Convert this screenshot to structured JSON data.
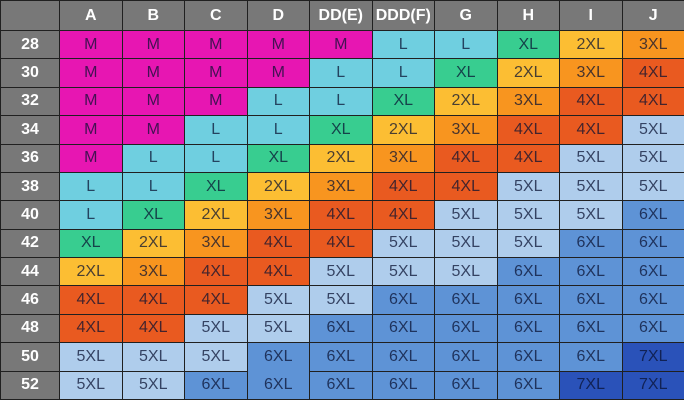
{
  "chart_data": {
    "type": "table",
    "corner_label": "",
    "column_headers": [
      "A",
      "B",
      "C",
      "D",
      "DD(E)",
      "DDD(F)",
      "G",
      "H",
      "I",
      "J"
    ],
    "row_headers": [
      "28",
      "30",
      "32",
      "34",
      "36",
      "38",
      "40",
      "42",
      "44",
      "46",
      "48",
      "50",
      "52"
    ],
    "rows": [
      {
        "band": "28",
        "sizes": [
          "M",
          "M",
          "M",
          "M",
          "M",
          "L",
          "L",
          "XL",
          "2XL",
          "3XL"
        ]
      },
      {
        "band": "30",
        "sizes": [
          "M",
          "M",
          "M",
          "M",
          "L",
          "L",
          "XL",
          "2XL",
          "3XL",
          "4XL"
        ]
      },
      {
        "band": "32",
        "sizes": [
          "M",
          "M",
          "M",
          "L",
          "L",
          "XL",
          "2XL",
          "3XL",
          "4XL",
          "4XL"
        ]
      },
      {
        "band": "34",
        "sizes": [
          "M",
          "M",
          "L",
          "L",
          "XL",
          "2XL",
          "3XL",
          "4XL",
          "4XL",
          "5XL"
        ]
      },
      {
        "band": "36",
        "sizes": [
          "M",
          "L",
          "L",
          "XL",
          "2XL",
          "3XL",
          "4XL",
          "4XL",
          "5XL",
          "5XL"
        ]
      },
      {
        "band": "38",
        "sizes": [
          "L",
          "L",
          "XL",
          "2XL",
          "3XL",
          "4XL",
          "4XL",
          "5XL",
          "5XL",
          "5XL"
        ]
      },
      {
        "band": "40",
        "sizes": [
          "L",
          "XL",
          "2XL",
          "3XL",
          "4XL",
          "4XL",
          "5XL",
          "5XL",
          "5XL",
          "6XL"
        ]
      },
      {
        "band": "42",
        "sizes": [
          "XL",
          "2XL",
          "3XL",
          "4XL",
          "4XL",
          "5XL",
          "5XL",
          "5XL",
          "6XL",
          "6XL"
        ]
      },
      {
        "band": "44",
        "sizes": [
          "2XL",
          "3XL",
          "4XL",
          "4XL",
          "5XL",
          "5XL",
          "5XL",
          "6XL",
          "6XL",
          "6XL"
        ]
      },
      {
        "band": "46",
        "sizes": [
          "4XL",
          "4XL",
          "4XL",
          "5XL",
          "5XL",
          "6XL",
          "6XL",
          "6XL",
          "6XL",
          "6XL"
        ]
      },
      {
        "band": "48",
        "sizes": [
          "4XL",
          "4XL",
          "5XL",
          "5XL",
          "6XL",
          "6XL",
          "6XL",
          "6XL",
          "6XL",
          "6XL"
        ]
      },
      {
        "band": "50",
        "sizes": [
          "5XL",
          "5XL",
          "5XL",
          "6XL",
          "6XL",
          "6XL",
          "6XL",
          "6XL",
          "6XL",
          "7XL"
        ]
      },
      {
        "band": "52",
        "sizes": [
          "5XL",
          "5XL",
          "6XL",
          "6XL",
          "6XL",
          "6XL",
          "6XL",
          "6XL",
          "7XL",
          "7XL"
        ]
      }
    ],
    "size_colors": {
      "M": "#e716b2",
      "L": "#6fcfe0",
      "XL": "#38cd90",
      "2XL": "#fcbe33",
      "3XL": "#f8951f",
      "4XL": "#e95a20",
      "5XL": "#afcdec",
      "6XL": "#5e93d6",
      "7XL": "#2a52b9"
    },
    "header_bg": "#787878",
    "header_text_color": "#ffffff",
    "grid_line_color": "#202020"
  }
}
